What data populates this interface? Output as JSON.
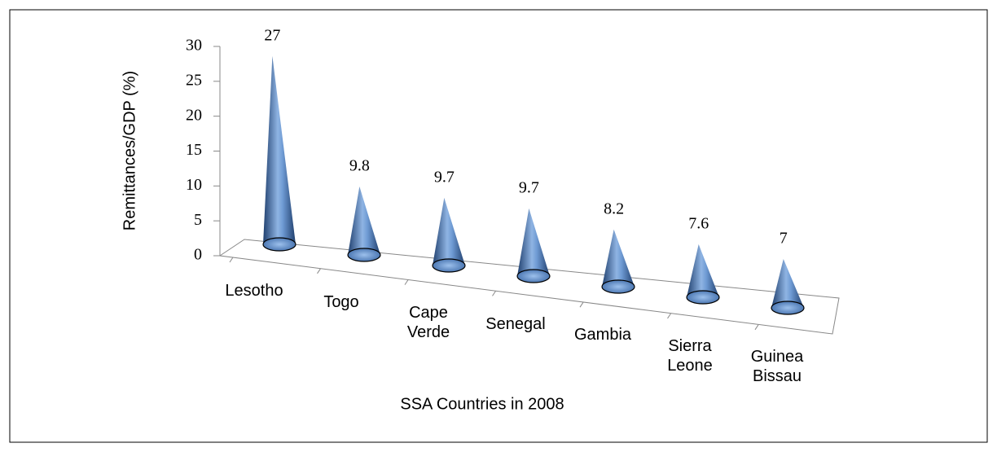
{
  "chart_data": {
    "type": "cone3d",
    "categories": [
      "Lesotho",
      "Togo",
      "Cape Verde",
      "Senegal",
      "Gambia",
      "Sierra Leone",
      "Guinea Bissau"
    ],
    "values": [
      27,
      9.8,
      9.7,
      9.7,
      8.2,
      7.6,
      7
    ],
    "color": "#4f81bd",
    "ylabel": "Remittances/GDP (%)",
    "xlabel": "SSA Countries in 2008",
    "ylim": [
      0,
      30
    ],
    "yticks": [
      0,
      5,
      10,
      15,
      20,
      25,
      30
    ]
  }
}
